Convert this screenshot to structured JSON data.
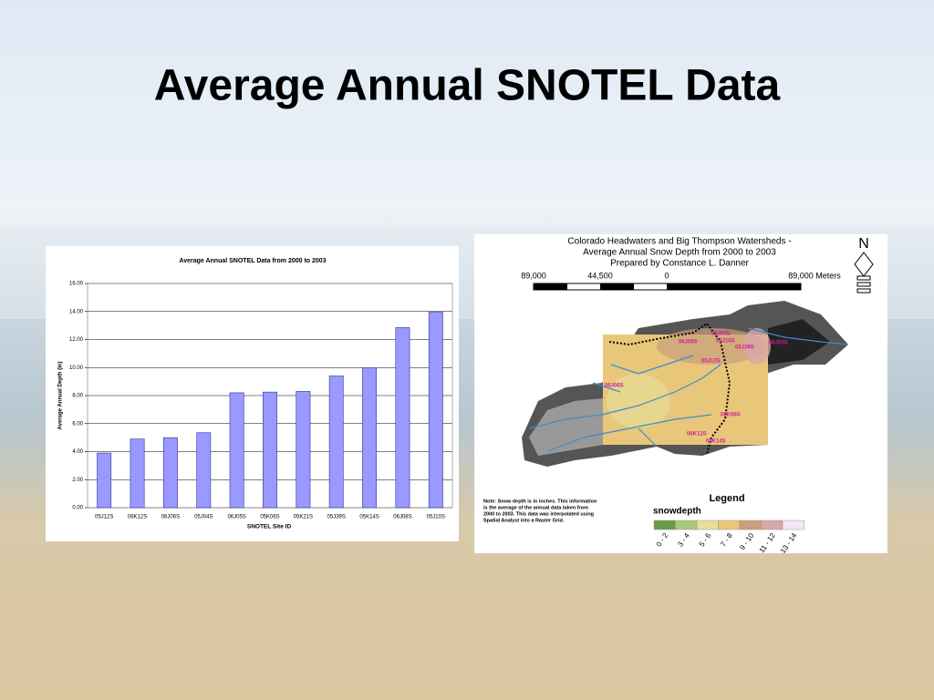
{
  "slide_title": "Average Annual SNOTEL Data",
  "chart_data": {
    "type": "bar",
    "title": "Average Annual SNOTEL Data from 2000 to 2003",
    "x_label": "SNOTEL Site ID",
    "y_label": "Average Annual Depth (in)",
    "categories": [
      "05J12S",
      "06K12S",
      "06J06S",
      "05J04S",
      "06J05S",
      "05K06S",
      "05K21S",
      "05J39S",
      "05K14S",
      "06J08S",
      "05J10S"
    ],
    "values": [
      3.9,
      4.9,
      5.0,
      5.35,
      8.2,
      8.25,
      8.3,
      9.4,
      10.0,
      12.85,
      13.95
    ],
    "color": "#9999ff",
    "ylim": [
      0,
      16
    ],
    "yticks": [
      {
        "value": 0,
        "label": "0.00"
      },
      {
        "value": 2,
        "label": "2.00"
      },
      {
        "value": 4,
        "label": "4.00"
      },
      {
        "value": 6,
        "label": "6.00"
      },
      {
        "value": 8,
        "label": "8.00"
      },
      {
        "value": 10,
        "label": "10.00"
      },
      {
        "value": 12,
        "label": "12.00"
      },
      {
        "value": 14,
        "label": "14.00"
      },
      {
        "value": 16,
        "label": "16.00"
      }
    ],
    "grid": true
  },
  "map": {
    "title_lines": [
      "Colorado Headwaters and Big Thompson Watersheds -",
      "Average Annual Snow Depth from 2000 to 2003",
      "Prepared by Constance L. Danner"
    ],
    "scale_labels": [
      "89,000",
      "44,500",
      "0",
      "89,000 Meters"
    ],
    "north": "N",
    "sites": [
      "05J04S",
      "05J10S",
      "06J08S",
      "05J39S",
      "06J03S",
      "05J12S",
      "06J06S",
      "05K06S",
      "06K12S",
      "05K14S"
    ],
    "note_lines": [
      "Note: Snow depth is in inches.  This information",
      "is the average of the annual data taken from",
      "2000 to 2003.  This data was interpolated using",
      "Spatial Analyst into a Raster Grid."
    ],
    "legend_title": "Legend",
    "legend_subtitle": "snowdepth",
    "legend_classes": [
      {
        "label": "0 - 2",
        "color": "#6a9a4a"
      },
      {
        "label": "3 - 4",
        "color": "#a9c97a"
      },
      {
        "label": "5 - 6",
        "color": "#e6e09a"
      },
      {
        "label": "7 - 8",
        "color": "#e8c77a"
      },
      {
        "label": "9 - 10",
        "color": "#c9a07a"
      },
      {
        "label": "11 - 12",
        "color": "#d9a8a8"
      },
      {
        "label": "13 - 14",
        "color": "#f5e8f4"
      }
    ]
  }
}
